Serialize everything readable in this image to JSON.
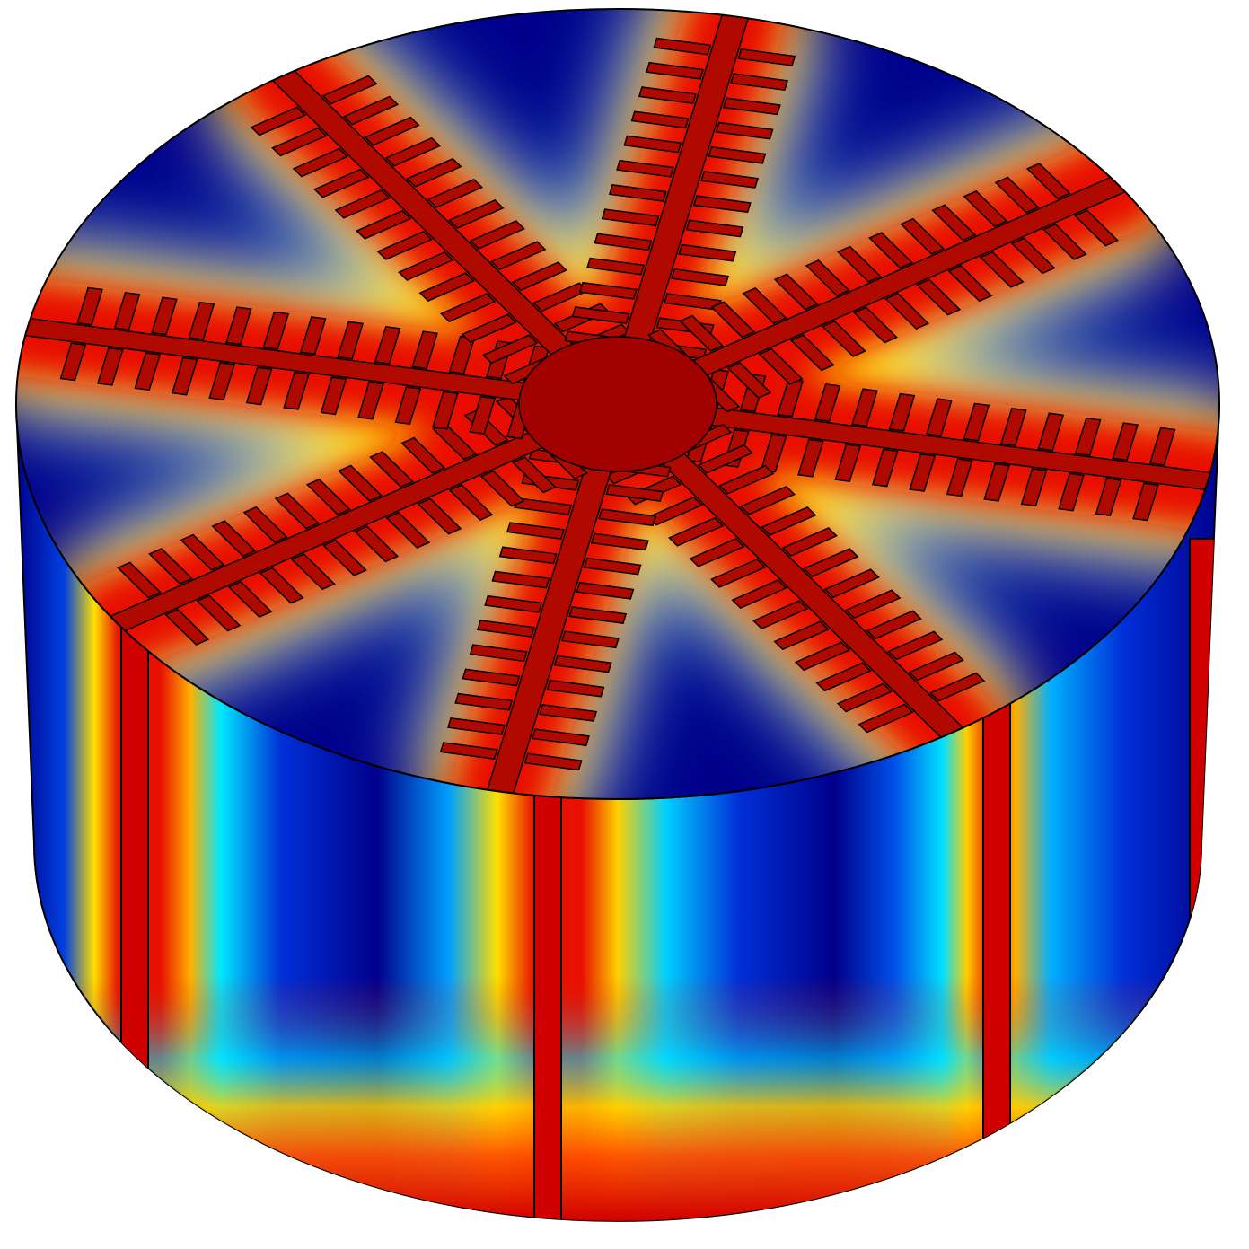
{
  "scene": {
    "kind": "3d-cylinder-field-plot",
    "colormap": [
      "#00008b",
      "#0030d8",
      "#00a0ff",
      "#00f0ff",
      "#e8f000",
      "#ff8a00",
      "#e81000",
      "#a00000"
    ],
    "electrode_color": "#b00a00",
    "outline_color": "#000000",
    "background": "#ffffff",
    "top": {
      "electrode_arms": 8,
      "fingers_per_arm_side": 13
    },
    "side": {
      "electrode_strips": 4
    }
  }
}
